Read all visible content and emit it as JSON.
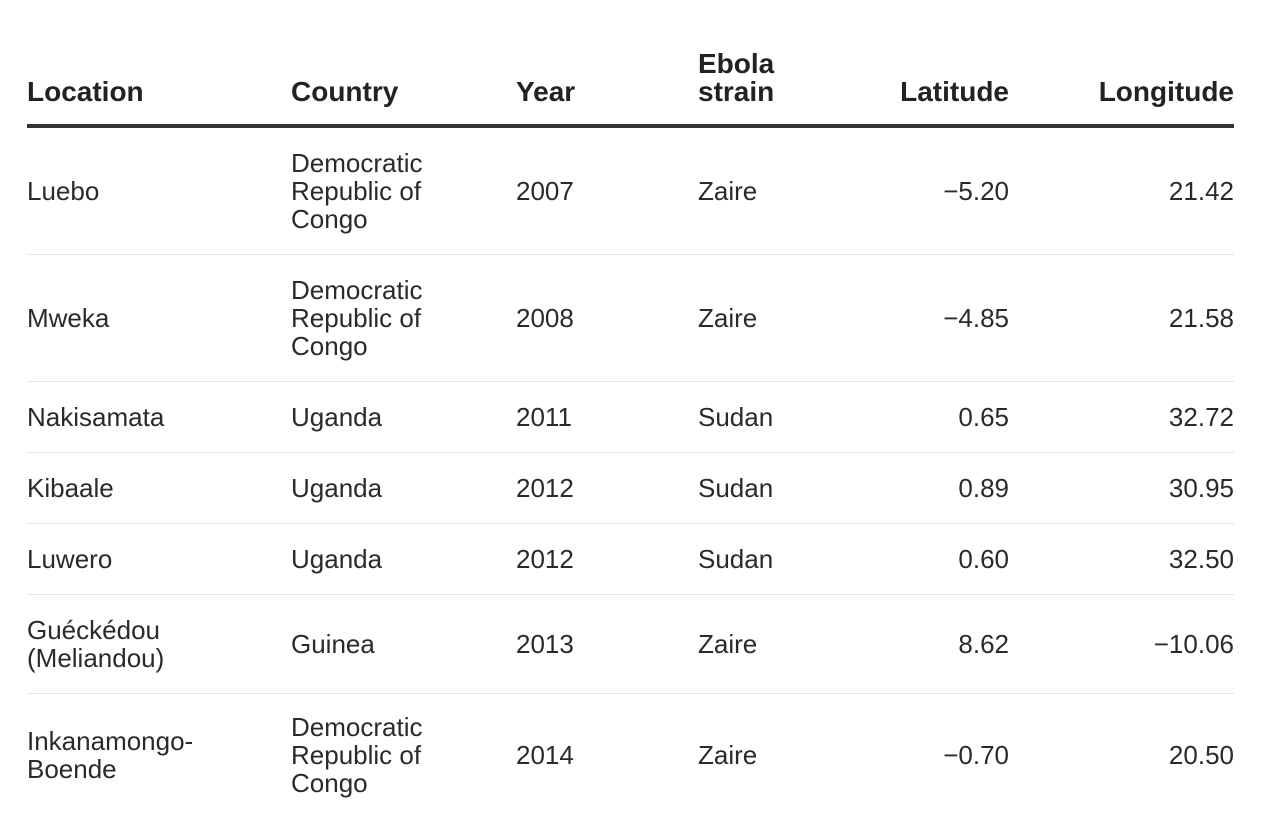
{
  "chart_data": {
    "type": "table",
    "columns": [
      "Location",
      "Country",
      "Year",
      "Ebola strain",
      "Latitude",
      "Longitude"
    ],
    "rows": [
      [
        "Luebo",
        "Democratic Republic of Congo",
        "2007",
        "Zaire",
        "−5.20",
        "21.42"
      ],
      [
        "Mweka",
        "Democratic Republic of Congo",
        "2008",
        "Zaire",
        "−4.85",
        "21.58"
      ],
      [
        "Nakisamata",
        "Uganda",
        "2011",
        "Sudan",
        "0.65",
        "32.72"
      ],
      [
        "Kibaale",
        "Uganda",
        "2012",
        "Sudan",
        "0.89",
        "30.95"
      ],
      [
        "Luwero",
        "Uganda",
        "2012",
        "Sudan",
        "0.60",
        "32.50"
      ],
      [
        "Guéckédou (Meliandou)",
        "Guinea",
        "2013",
        "Zaire",
        "8.62",
        "−10.06"
      ],
      [
        "Inkanamongo-Boende",
        "Democratic Republic of Congo",
        "2014",
        "Zaire",
        "−0.70",
        "20.50"
      ]
    ]
  },
  "colors": {
    "header_rule": "#333333",
    "row_rule": "#e3e3e3",
    "text": "#222222",
    "background": "#ffffff"
  }
}
